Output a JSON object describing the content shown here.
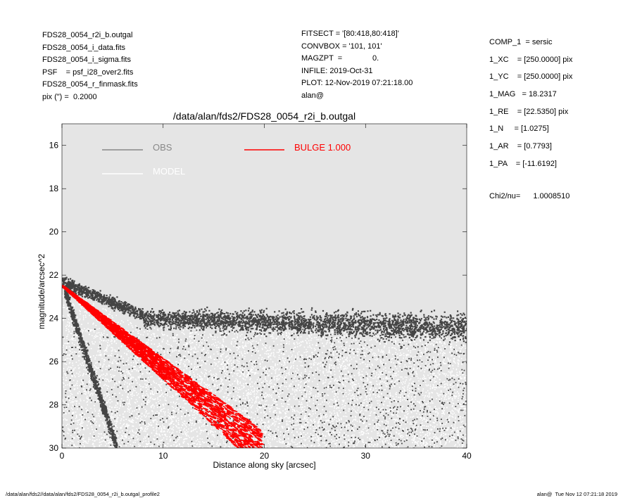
{
  "header": {
    "left": [
      "FDS28_0054_r2i_b.outgal",
      "FDS28_0054_i_data.fits",
      "FDS28_0054_i_sigma.fits",
      "PSF    = psf_i28_over2.fits",
      "FDS28_0054_r_finmask.fits",
      "pix (\") =  0.2000"
    ],
    "middle": [
      "FITSECT = '[80:418,80:418]'",
      "CONVBOX = '101, 101'",
      "MAGZPT  =              0.",
      "INFILE: 2019-Oct-31",
      "PLOT: 12-Nov-2019 07:21:18.00",
      "alan@"
    ],
    "right": [
      "COMP_1  = sersic",
      "1_XC    = [250.0000] pix",
      "1_YC    = [250.0000] pix",
      "1_MAG   = 18.2317",
      "1_RE    = [22.5350] pix",
      "1_N     = [1.0275]",
      "1_AR    = [0.7793]",
      "1_PA    = [-11.6192]"
    ],
    "chi2_label": "Chi2/nu=",
    "chi2_value": "1.0008510"
  },
  "footer": {
    "left": "/data/alan/fds2//data/alan/fds2/FDS28_0054_r2i_b.outgal_profile2",
    "right": "alan@  Tue Nov 12 07:21:18 2019"
  },
  "colors": {
    "plot_bg": "#e5e5e5",
    "obs": "#444444",
    "obs_legend": "#888888",
    "model": "#ffffff",
    "bulge": "#ff0000"
  },
  "chart_data": {
    "type": "scatter",
    "title": "/data/alan/fds2/FDS28_0054_r2i_b.outgal",
    "xlabel": "Distance along sky [arcsec]",
    "ylabel": "magnitude/arcsec^2",
    "xlim": [
      0,
      40
    ],
    "ylim": [
      30,
      15
    ],
    "y_inverted": true,
    "xticks": [
      0,
      10,
      20,
      30,
      40
    ],
    "yticks": [
      16,
      18,
      20,
      22,
      24,
      26,
      28,
      30
    ],
    "legend": [
      {
        "name": "OBS",
        "color": "#888888"
      },
      {
        "name": "MODEL",
        "color": "#ffffff"
      },
      {
        "name": "BULGE  1.000",
        "color": "#ff0000"
      }
    ],
    "series": [
      {
        "name": "OBS",
        "description_points": [
          {
            "x": 0.2,
            "y": 22.3
          },
          {
            "x": 2,
            "y": 22.6
          },
          {
            "x": 4,
            "y": 23.1
          },
          {
            "x": 6,
            "y": 23.5
          },
          {
            "x": 8,
            "y": 23.8
          },
          {
            "x": 10,
            "y": 24.0
          },
          {
            "x": 15,
            "y": 24.2
          },
          {
            "x": 20,
            "y": 24.2
          },
          {
            "x": 30,
            "y": 24.2
          },
          {
            "x": 40,
            "y": 24.5
          },
          {
            "x": 0.2,
            "y": 22.8
          },
          {
            "x": 1,
            "y": 23.6
          },
          {
            "x": 2,
            "y": 24.8
          },
          {
            "x": 3,
            "y": 26.2
          },
          {
            "x": 4,
            "y": 27.6
          },
          {
            "x": 5,
            "y": 29.0
          }
        ]
      },
      {
        "name": "BULGE  1.000",
        "description_points": [
          {
            "x": 0,
            "y": 22.5
          },
          {
            "x": 5,
            "y": 24.4
          },
          {
            "x": 10,
            "y": 26.3
          },
          {
            "x": 15,
            "y": 28.2
          },
          {
            "x": 19.5,
            "y": 30.0
          }
        ]
      }
    ]
  }
}
